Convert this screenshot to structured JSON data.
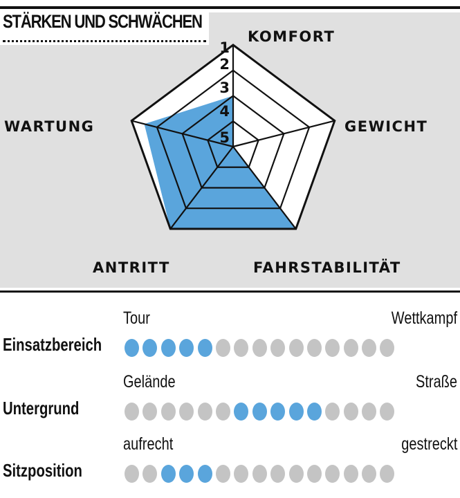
{
  "header": {
    "title": "STÄRKEN UND SCHWÄCHEN"
  },
  "chart_data": {
    "type": "radar",
    "axes": [
      "KOMFORT",
      "GEWICHT",
      "FAHRSTABILITÄT",
      "ANTRITT",
      "WARTUNG"
    ],
    "values": [
      3,
      5,
      1,
      1,
      1.5
    ],
    "scale_labels": [
      "1",
      "2",
      "3",
      "4",
      "5"
    ],
    "range": [
      5,
      1
    ],
    "fill_color": "#5aa5dc"
  },
  "scales": [
    {
      "label": "Einsatzbereich",
      "low": "Tour",
      "high": "Wettkampf",
      "total": 15,
      "active": [
        1,
        2,
        3,
        4,
        5
      ]
    },
    {
      "label": "Untergrund",
      "low": "Gelände",
      "high": "Straße",
      "total": 15,
      "active": [
        7,
        8,
        9,
        10,
        11
      ]
    },
    {
      "label": "Sitzposition",
      "low": "aufrecht",
      "high": "gestreckt",
      "total": 15,
      "active": [
        3,
        4,
        5
      ]
    }
  ],
  "colors": {
    "active": "#5aa5dc",
    "inactive": "#c4c4c4",
    "panel": "#e0e0e0"
  }
}
